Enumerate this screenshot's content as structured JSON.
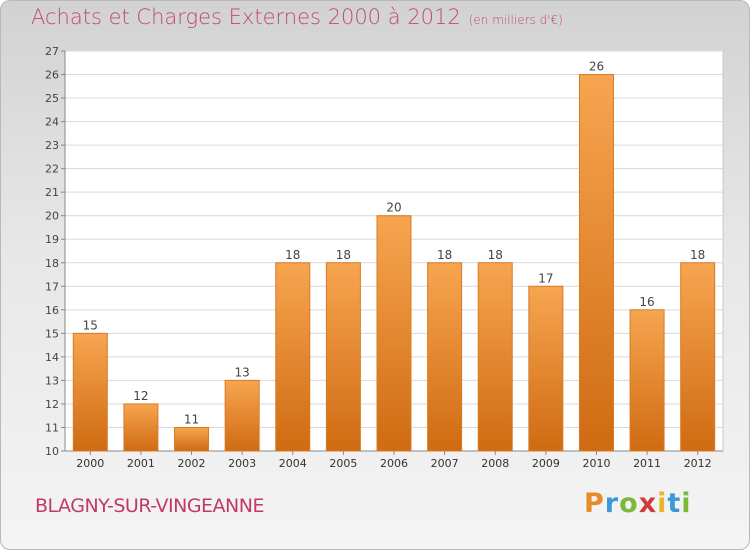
{
  "header": {
    "title": "Achats et Charges Externes 2000 à 2012",
    "unit": "(en milliers d'€)"
  },
  "footer": {
    "commune": "BLAGNY-SUR-VINGEANNE",
    "logo_letters": [
      "P",
      "r",
      "o",
      "x",
      "i",
      "t",
      "i"
    ],
    "logo_colors": [
      "#e8892a",
      "#3a9ad9",
      "#7cb83a",
      "#d23a3a",
      "#e8b52a",
      "#3a9ad9",
      "#7cb83a"
    ]
  },
  "colors": {
    "bar_top": "#f7a550",
    "bar_bottom": "#cf6b12",
    "accent": "#c24a6e",
    "grid": "#d9d9d9"
  },
  "chart_data": {
    "type": "bar",
    "categories": [
      "2000",
      "2001",
      "2002",
      "2003",
      "2004",
      "2005",
      "2006",
      "2007",
      "2008",
      "2009",
      "2010",
      "2011",
      "2012"
    ],
    "values": [
      15,
      12,
      11,
      13,
      18,
      18,
      20,
      18,
      18,
      17,
      26,
      16,
      18
    ],
    "ylim": [
      10,
      27
    ],
    "yticks": [
      10,
      11,
      12,
      13,
      14,
      15,
      16,
      17,
      18,
      19,
      20,
      21,
      22,
      23,
      24,
      25,
      26,
      27
    ],
    "grid": true,
    "data_labels": true
  }
}
